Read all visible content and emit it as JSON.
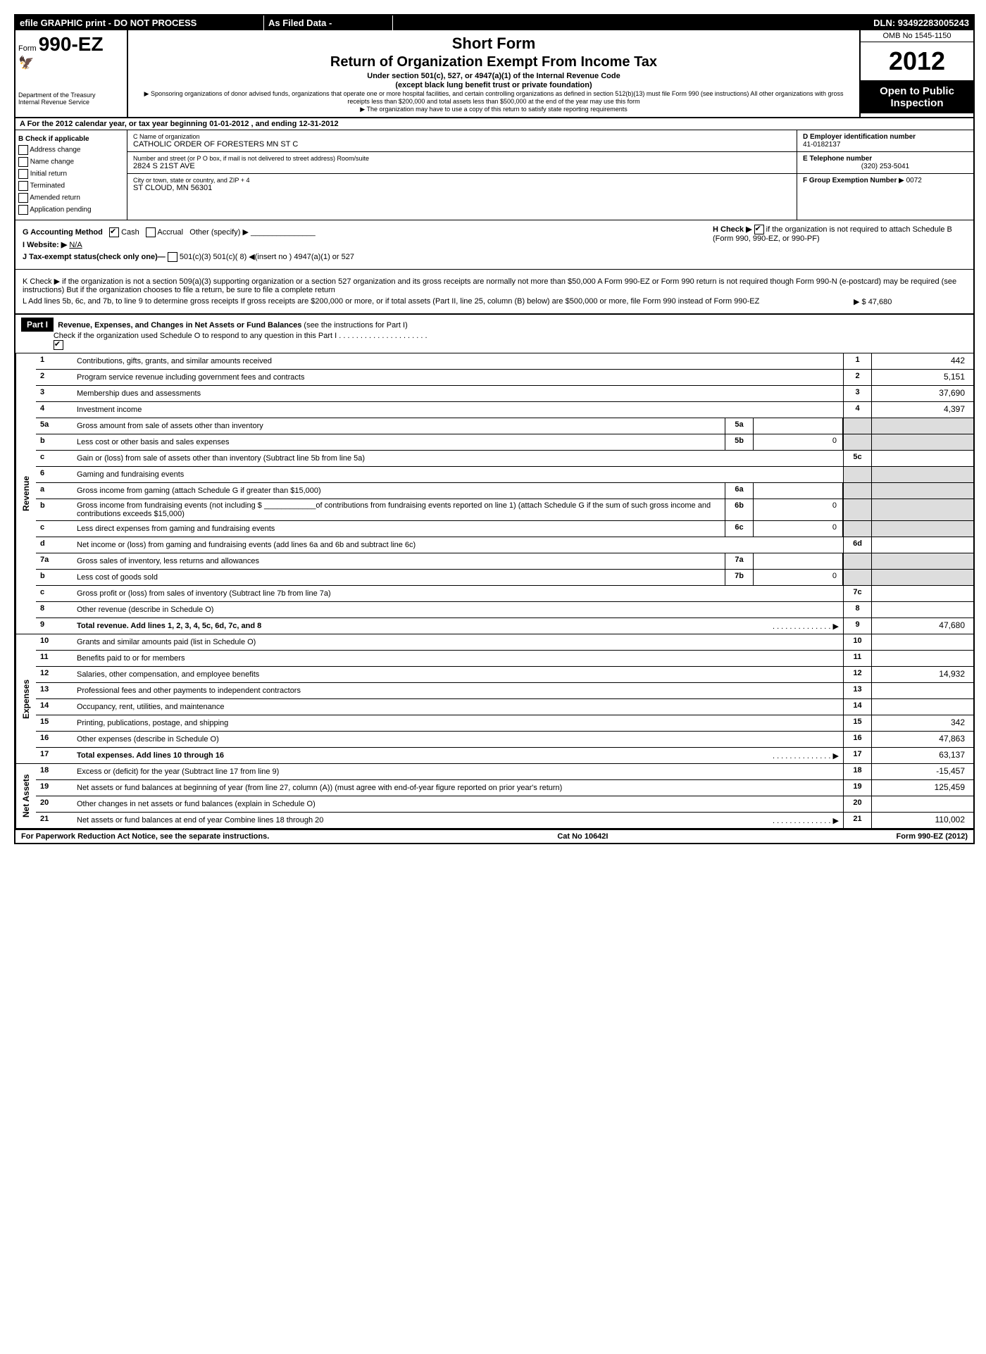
{
  "topbar": {
    "left": "efile GRAPHIC print - DO NOT PROCESS",
    "mid": "As Filed Data -",
    "right": "DLN: 93492283005243"
  },
  "header": {
    "form_label": "Form",
    "form_number": "990-EZ",
    "dept1": "Department of the Treasury",
    "dept2": "Internal Revenue Service",
    "title1": "Short Form",
    "title2": "Return of Organization Exempt From Income Tax",
    "sub1": "Under section 501(c), 527, or 4947(a)(1) of the Internal Revenue Code",
    "sub2": "(except black lung benefit trust or private foundation)",
    "note1": "▶ Sponsoring organizations of donor advised funds, organizations that operate one or more hospital facilities, and certain controlling organizations as defined in section 512(b)(13) must file Form 990 (see instructions) All other organizations with gross receipts less than $200,000 and total assets less than $500,000 at the end of the year may use this form",
    "note2": "▶ The organization may have to use a copy of this return to satisfy state reporting requirements",
    "omb": "OMB No 1545-1150",
    "year": "2012",
    "inspect1": "Open to Public",
    "inspect2": "Inspection"
  },
  "row_a": "A  For the 2012 calendar year, or tax year beginning 01-01-2012            , and ending 12-31-2012",
  "section_b": {
    "header": "B  Check if applicable",
    "items": [
      "Address change",
      "Name change",
      "Initial return",
      "Terminated",
      "Amended return",
      "Application pending"
    ]
  },
  "section_c": {
    "name_label": "C Name of organization",
    "name": "CATHOLIC ORDER OF FORESTERS MN ST C",
    "addr_label": "Number and street (or P O box, if mail is not delivered to street address) Room/suite",
    "addr": "2824 S 21ST AVE",
    "city_label": "City or town, state or country, and ZIP + 4",
    "city": "ST CLOUD, MN  56301"
  },
  "section_d": {
    "ein_label": "D Employer identification number",
    "ein": "41-0182137",
    "tel_label": "E Telephone number",
    "tel": "(320) 253-5041",
    "grp_label": "F Group Exemption Number",
    "grp": "▶ 0072"
  },
  "info": {
    "g": "G Accounting Method",
    "g_cash": "Cash",
    "g_accrual": "Accrual",
    "g_other": "Other (specify) ▶",
    "h": "H  Check ▶",
    "h_text": "if the organization is not required to attach Schedule B (Form 990, 990-EZ, or 990-PF)",
    "i": "I Website: ▶",
    "i_val": "N/A",
    "j": "J Tax-exempt status(check only one)—",
    "j_opts": "501(c)(3)          501(c)( 8)  ◀(insert no )        4947(a)(1) or        527",
    "k": "K Check ▶        if the organization is not a section 509(a)(3) supporting organization or a section 527 organization and its gross receipts are normally not more than $50,000  A Form 990-EZ or Form 990 return is not required though Form 990-N (e-postcard) may be required (see instructions)  But if the organization chooses to file a return, be sure to file a complete return",
    "l": "L Add lines 5b, 6c, and 7b, to line 9 to determine gross receipts  If gross receipts are $200,000 or more, or if total assets (Part II, line 25, column (B) below) are $500,000 or more, file Form 990 instead of Form 990-EZ",
    "l_val": "▶ $ 47,680"
  },
  "part1": {
    "label": "Part I",
    "title": "Revenue, Expenses, and Changes in Net Assets or Fund Balances",
    "title_note": "(see the instructions for Part I)",
    "check_note": "Check if the organization used Schedule O to respond to any question in this Part I"
  },
  "revenue": {
    "label": "Revenue",
    "lines": [
      {
        "n": "1",
        "d": "Contributions, gifts, grants, and similar amounts received",
        "en": "1",
        "ev": "442"
      },
      {
        "n": "2",
        "d": "Program service revenue including government fees and contracts",
        "en": "2",
        "ev": "5,151"
      },
      {
        "n": "3",
        "d": "Membership dues and assessments",
        "en": "3",
        "ev": "37,690"
      },
      {
        "n": "4",
        "d": "Investment income",
        "en": "4",
        "ev": "4,397"
      },
      {
        "n": "5a",
        "d": "Gross amount from sale of assets other than inventory",
        "mn": "5a",
        "mv": ""
      },
      {
        "n": "b",
        "d": "Less  cost or other basis and sales expenses",
        "mn": "5b",
        "mv": "0"
      },
      {
        "n": "c",
        "d": "Gain or (loss) from sale of assets other than inventory (Subtract line 5b from line 5a)",
        "en": "5c",
        "ev": ""
      },
      {
        "n": "6",
        "d": "Gaming and fundraising events",
        "noborder": true
      },
      {
        "n": "a",
        "d": "Gross income from gaming (attach Schedule G if greater than $15,000)",
        "mn": "6a",
        "mv": ""
      },
      {
        "n": "b",
        "d": "Gross income from fundraising events (not including $ ____________of contributions from fundraising events reported on line 1) (attach Schedule G if the sum of such gross income and contributions exceeds $15,000)",
        "mn": "6b",
        "mv": "0"
      },
      {
        "n": "c",
        "d": "Less  direct expenses from gaming and fundraising events",
        "mn": "6c",
        "mv": "0"
      },
      {
        "n": "d",
        "d": "Net income or (loss) from gaming and fundraising events (add lines 6a and 6b and subtract line 6c)",
        "en": "6d",
        "ev": ""
      },
      {
        "n": "7a",
        "d": "Gross sales of inventory, less returns and allowances",
        "mn": "7a",
        "mv": ""
      },
      {
        "n": "b",
        "d": "Less  cost of goods sold",
        "mn": "7b",
        "mv": "0"
      },
      {
        "n": "c",
        "d": "Gross profit or (loss) from sales of inventory (Subtract line 7b from line 7a)",
        "en": "7c",
        "ev": ""
      },
      {
        "n": "8",
        "d": "Other revenue (describe in Schedule O)",
        "en": "8",
        "ev": ""
      },
      {
        "n": "9",
        "d": "Total revenue. Add lines 1, 2, 3, 4, 5c, 6d, 7c, and 8",
        "en": "9",
        "ev": "47,680",
        "bold": true,
        "arrow": true
      }
    ]
  },
  "expenses": {
    "label": "Expenses",
    "lines": [
      {
        "n": "10",
        "d": "Grants and similar amounts paid (list in Schedule O)",
        "en": "10",
        "ev": ""
      },
      {
        "n": "11",
        "d": "Benefits paid to or for members",
        "en": "11",
        "ev": ""
      },
      {
        "n": "12",
        "d": "Salaries, other compensation, and employee benefits",
        "en": "12",
        "ev": "14,932"
      },
      {
        "n": "13",
        "d": "Professional fees and other payments to independent contractors",
        "en": "13",
        "ev": ""
      },
      {
        "n": "14",
        "d": "Occupancy, rent, utilities, and maintenance",
        "en": "14",
        "ev": ""
      },
      {
        "n": "15",
        "d": "Printing, publications, postage, and shipping",
        "en": "15",
        "ev": "342"
      },
      {
        "n": "16",
        "d": "Other expenses (describe in Schedule O)",
        "en": "16",
        "ev": "47,863"
      },
      {
        "n": "17",
        "d": "Total expenses. Add lines 10 through 16",
        "en": "17",
        "ev": "63,137",
        "bold": true,
        "arrow": true
      }
    ]
  },
  "netassets": {
    "label": "Net Assets",
    "lines": [
      {
        "n": "18",
        "d": "Excess or (deficit) for the year (Subtract line 17 from line 9)",
        "en": "18",
        "ev": "-15,457"
      },
      {
        "n": "19",
        "d": "Net assets or fund balances at beginning of year (from line 27, column (A)) (must agree with end-of-year figure reported on prior year's return)",
        "en": "19",
        "ev": "125,459"
      },
      {
        "n": "20",
        "d": "Other changes in net assets or fund balances (explain in Schedule O)",
        "en": "20",
        "ev": ""
      },
      {
        "n": "21",
        "d": "Net assets or fund balances at end of year  Combine lines 18 through 20",
        "en": "21",
        "ev": "110,002",
        "arrow": true
      }
    ]
  },
  "footer": {
    "left": "For Paperwork Reduction Act Notice, see the separate instructions.",
    "mid": "Cat No 10642I",
    "right": "Form 990-EZ (2012)"
  }
}
